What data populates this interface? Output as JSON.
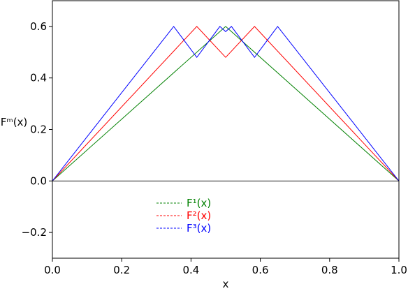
{
  "chart_data": {
    "type": "line",
    "xlabel": "x",
    "ylabel": "Fᵐ(x)",
    "xlim": [
      0.0,
      1.0
    ],
    "ylim": [
      -0.3,
      0.7
    ],
    "grid": false,
    "zero_line": true,
    "legend_position": "lower-center",
    "x_ticks": [
      {
        "value": 0.0,
        "label": "0.0"
      },
      {
        "value": 0.2,
        "label": "0.2"
      },
      {
        "value": 0.4,
        "label": "0.4"
      },
      {
        "value": 0.6,
        "label": "0.6"
      },
      {
        "value": 0.8,
        "label": "0.8"
      },
      {
        "value": 1.0,
        "label": "1.0"
      }
    ],
    "y_ticks": [
      {
        "value": -0.2,
        "label": "−0.2"
      },
      {
        "value": 0.0,
        "label": "0.0"
      },
      {
        "value": 0.2,
        "label": "0.2"
      },
      {
        "value": 0.4,
        "label": "0.4"
      },
      {
        "value": 0.6,
        "label": "0.6"
      }
    ],
    "series": [
      {
        "name": "F¹(x)",
        "color": "#008000",
        "x": [
          0.0,
          0.5,
          1.0
        ],
        "y": [
          0.0,
          0.6,
          0.0
        ]
      },
      {
        "name": "F²(x)",
        "color": "#ff0000",
        "x": [
          0.0,
          0.4167,
          0.5,
          0.5833,
          1.0
        ],
        "y": [
          0.0,
          0.6,
          0.48,
          0.6,
          0.0
        ]
      },
      {
        "name": "F³(x)",
        "color": "#0000ff",
        "x": [
          0.0,
          0.35,
          0.4167,
          0.4833,
          0.5,
          0.5167,
          0.5833,
          0.65,
          1.0
        ],
        "y": [
          0.0,
          0.6,
          0.48,
          0.6,
          0.58,
          0.6,
          0.48,
          0.6,
          0.0
        ]
      }
    ]
  }
}
